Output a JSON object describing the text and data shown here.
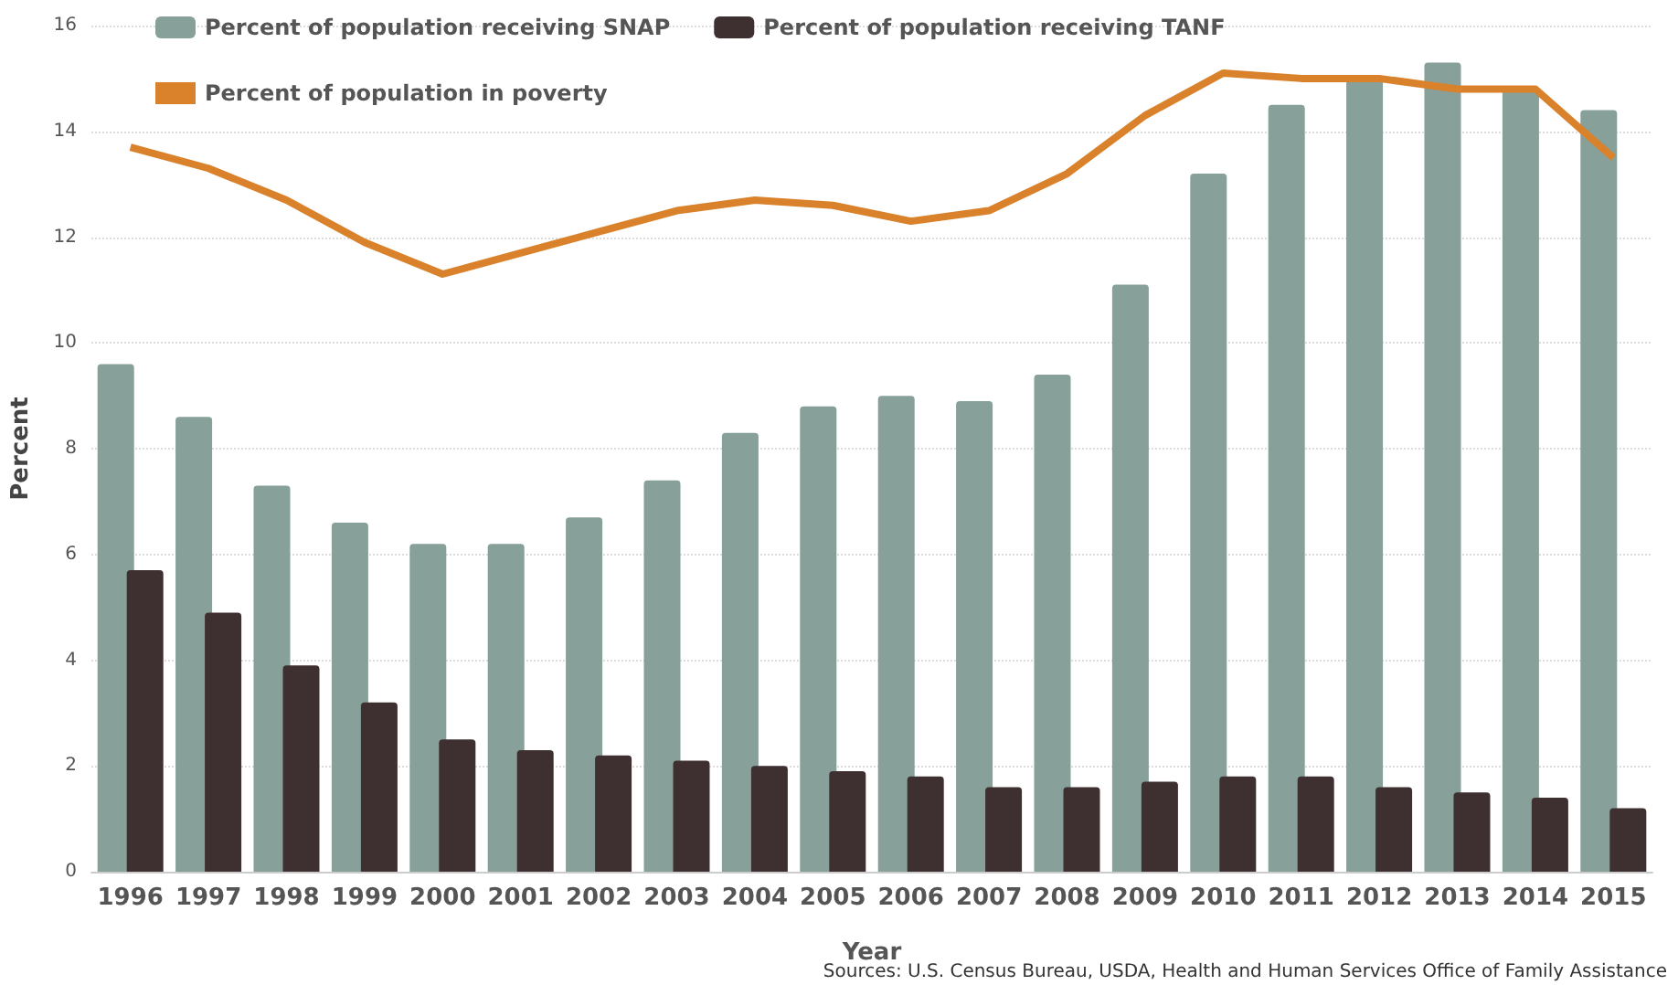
{
  "chart_data": {
    "type": "bar",
    "xlabel": "Year",
    "ylabel": "Percent",
    "categories": [
      "1996",
      "1997",
      "1998",
      "1999",
      "2000",
      "2001",
      "2002",
      "2003",
      "2004",
      "2005",
      "2006",
      "2007",
      "2008",
      "2009",
      "2010",
      "2011",
      "2012",
      "2013",
      "2014",
      "2015"
    ],
    "series": [
      {
        "name": "Percent of population receiving SNAP",
        "color": "#87a09a",
        "values": [
          9.6,
          8.6,
          7.3,
          6.6,
          6.2,
          6.2,
          6.7,
          7.4,
          8.3,
          8.8,
          9.0,
          8.9,
          9.4,
          11.1,
          13.2,
          14.5,
          15.0,
          15.3,
          14.8,
          14.4
        ]
      },
      {
        "name": "Percent of population receiving TANF",
        "color": "#3e2f30",
        "values": [
          5.7,
          4.9,
          3.9,
          3.2,
          2.5,
          2.3,
          2.2,
          2.1,
          2.0,
          1.9,
          1.8,
          1.6,
          1.6,
          1.7,
          1.8,
          1.8,
          1.6,
          1.5,
          1.4,
          1.2
        ]
      },
      {
        "name": "Percent of population in poverty",
        "type": "line",
        "color": "#d9822b",
        "values": [
          13.7,
          13.3,
          12.7,
          11.9,
          11.3,
          11.7,
          12.1,
          12.5,
          12.7,
          12.6,
          12.3,
          12.5,
          13.2,
          14.3,
          15.1,
          15.0,
          15.0,
          14.8,
          14.8,
          13.5
        ]
      }
    ],
    "ylim": [
      0,
      16
    ],
    "yticks": [
      0,
      2,
      4,
      6,
      8,
      10,
      12,
      14,
      16
    ],
    "grid": "y",
    "legend": "top",
    "annotations": [
      "Sources: U.S. Census Bureau, USDA, Health and Human Services Office of Family Assistance"
    ]
  }
}
